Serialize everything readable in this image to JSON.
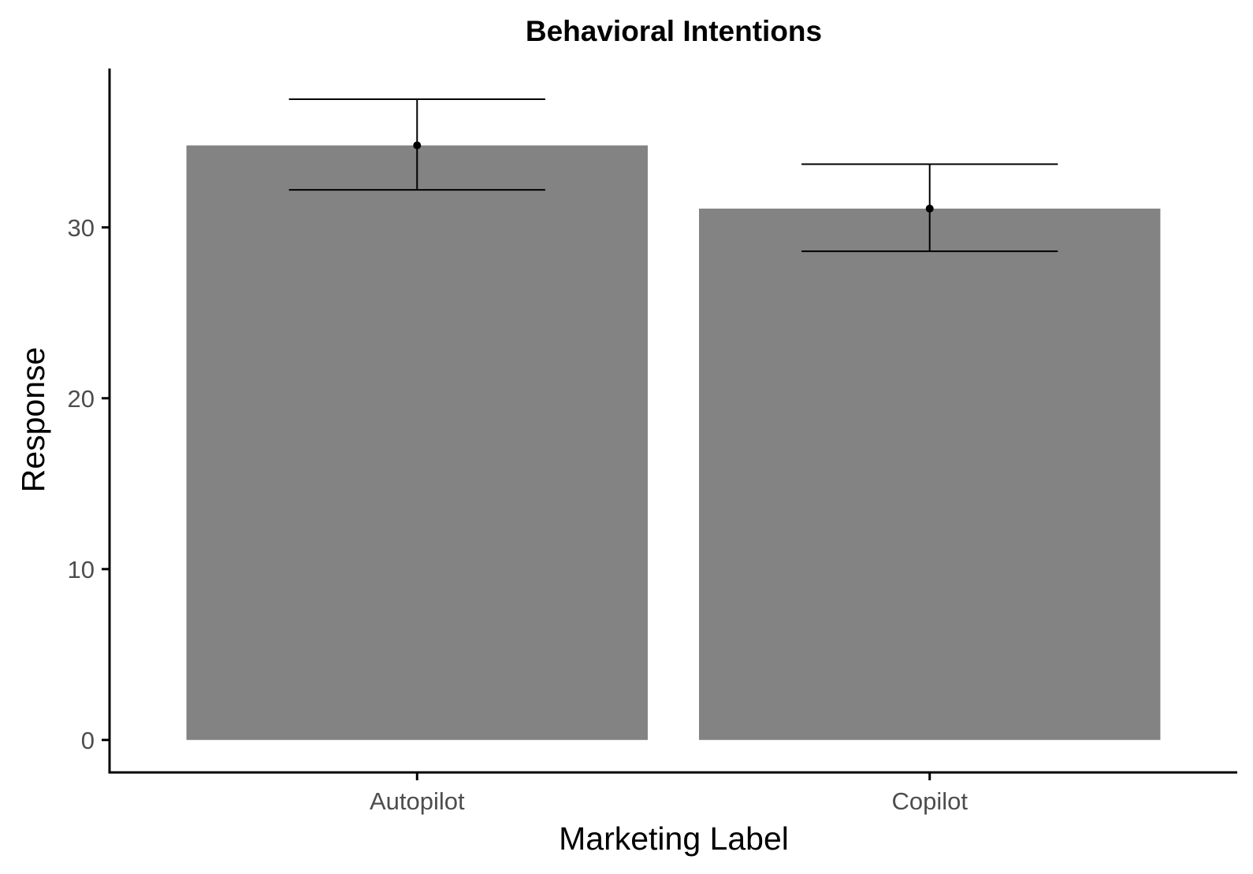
{
  "chart_data": {
    "type": "bar",
    "title": "Behavioral Intentions",
    "xlabel": "Marketing Label",
    "ylabel": "Response",
    "categories": [
      "Autopilot",
      "Copilot"
    ],
    "values": [
      34.8,
      31.1
    ],
    "error_bars": [
      {
        "low": 32.2,
        "high": 37.5
      },
      {
        "low": 28.6,
        "high": 33.7
      }
    ],
    "yticks": [
      0,
      10,
      20,
      30
    ],
    "ytick_labels": [
      "0",
      "10",
      "20",
      "30"
    ],
    "ylim": [
      -1.9,
      39.3
    ],
    "grid": false,
    "legend": "none",
    "bar_color": "#838383",
    "errorbar_color": "#000000"
  }
}
